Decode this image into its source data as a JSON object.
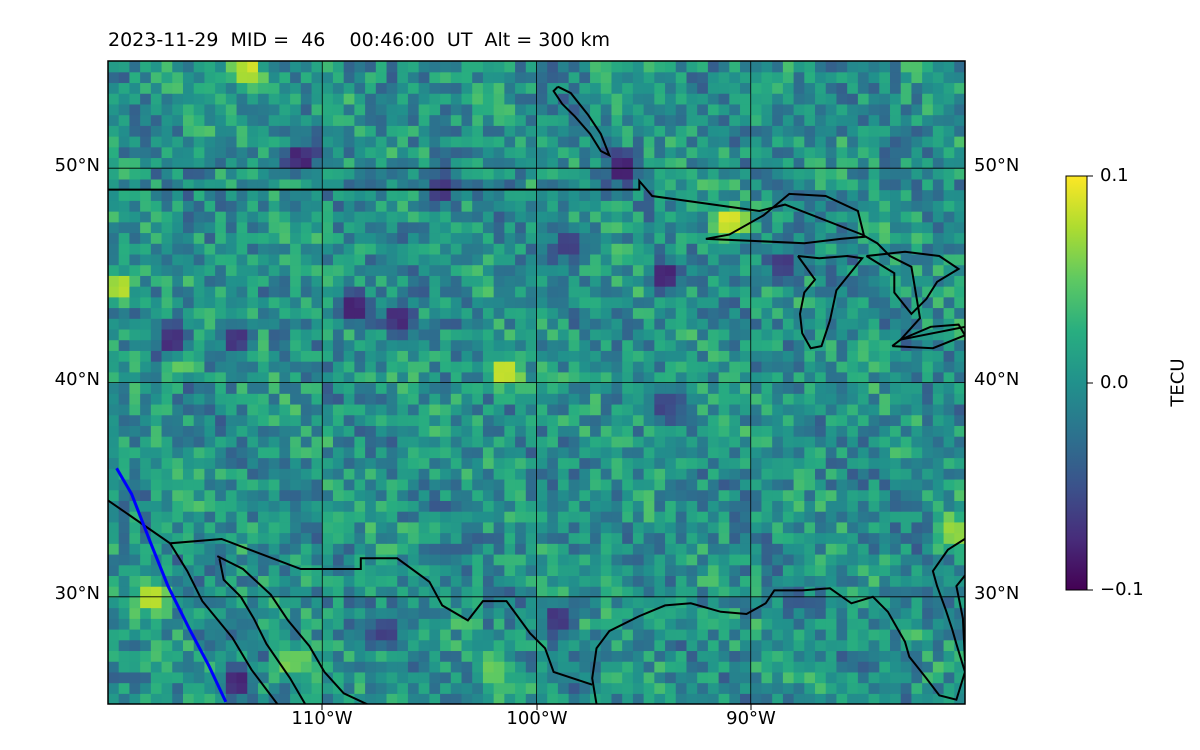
{
  "title": "2023-11-29  MID =  46    00:46:00  UT  Alt = 300 km",
  "chart_data": {
    "type": "heatmap",
    "title": "2023-11-29  MID =  46    00:46:00  UT  Alt = 300 km",
    "map_extent": {
      "lon": [
        -120,
        -80
      ],
      "lat": [
        25,
        55
      ]
    },
    "x_ticks": [
      {
        "value": -110,
        "label": "110°W"
      },
      {
        "value": -100,
        "label": "100°W"
      },
      {
        "value": -90,
        "label": "90°W"
      }
    ],
    "y_ticks": [
      {
        "value": 30,
        "label": "30°N"
      },
      {
        "value": 40,
        "label": "40°N"
      },
      {
        "value": 50,
        "label": "50°N"
      }
    ],
    "grid": true,
    "colorbar": {
      "label": "TECU",
      "colormap": "viridis",
      "range": [
        -0.1,
        0.1
      ],
      "ticks": [
        {
          "value": 0.1,
          "label": "0.1"
        },
        {
          "value": 0.0,
          "label": "0.0"
        },
        {
          "value": -0.1,
          "label": "−0.1"
        }
      ]
    },
    "grid_resolution_deg": 0.5,
    "value_summary": "Mostly near 0.0 TECU (teal) with scattered negative patches (purple, ~-0.1) and sparse positive spots (yellow, ~+0.1)",
    "hotspots": [
      {
        "lon": -119.5,
        "lat": 44.5,
        "value": 0.09
      },
      {
        "lon": -113.5,
        "lat": 54.5,
        "value": 0.1
      },
      {
        "lon": -101.5,
        "lat": 40.5,
        "value": 0.1
      },
      {
        "lon": -118.0,
        "lat": 30.0,
        "value": 0.1
      },
      {
        "lon": -91.0,
        "lat": 47.5,
        "value": 0.1
      },
      {
        "lon": -80.5,
        "lat": 33.0,
        "value": 0.08
      },
      {
        "lon": -111.5,
        "lat": 27.0,
        "value": 0.07
      },
      {
        "lon": -116.5,
        "lat": 41.0,
        "value": 0.06
      },
      {
        "lon": -102.0,
        "lat": 26.5,
        "value": 0.06
      },
      {
        "lon": -111.0,
        "lat": 50.5,
        "value": -0.09
      },
      {
        "lon": -104.5,
        "lat": 49.0,
        "value": -0.08
      },
      {
        "lon": -108.5,
        "lat": 43.5,
        "value": -0.1
      },
      {
        "lon": -106.5,
        "lat": 43.0,
        "value": -0.09
      },
      {
        "lon": -117.0,
        "lat": 42.0,
        "value": -0.09
      },
      {
        "lon": -114.0,
        "lat": 42.0,
        "value": -0.08
      },
      {
        "lon": -96.0,
        "lat": 50.0,
        "value": -0.1
      },
      {
        "lon": -98.5,
        "lat": 46.5,
        "value": -0.08
      },
      {
        "lon": -94.0,
        "lat": 45.0,
        "value": -0.09
      },
      {
        "lon": -88.5,
        "lat": 45.5,
        "value": -0.08
      },
      {
        "lon": -114.0,
        "lat": 26.0,
        "value": -0.09
      },
      {
        "lon": -107.0,
        "lat": 28.5,
        "value": -0.07
      },
      {
        "lon": -94.0,
        "lat": 39.0,
        "value": -0.07
      },
      {
        "lon": -99.0,
        "lat": 29.0,
        "value": -0.08
      }
    ],
    "overlays": {
      "coastlines_and_borders": true,
      "blue_line": {
        "color": "#0000ff",
        "points": [
          [
            -119.6,
            36.0
          ],
          [
            -118.9,
            34.8
          ],
          [
            -118.0,
            32.5
          ],
          [
            -117.2,
            30.5
          ],
          [
            -116.2,
            28.5
          ],
          [
            -115.3,
            26.8
          ],
          [
            -114.5,
            25.1
          ]
        ]
      }
    }
  },
  "colors": {
    "border": "#000000",
    "grid": "#000000",
    "track": "#0000ff",
    "background": "#ffffff"
  }
}
